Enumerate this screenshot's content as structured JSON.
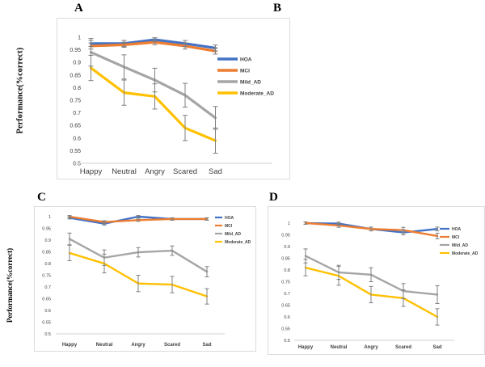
{
  "panels": {
    "a": {
      "letter": "A",
      "y_axis_label": "Performance(%correct)"
    },
    "b": {
      "letter": "B"
    },
    "c": {
      "letter": "C",
      "y_axis_label": "Performance(%correct)"
    },
    "d": {
      "letter": "D"
    }
  },
  "colors": {
    "hoa": "#4472C4",
    "mci": "#ED7D31",
    "mild_ad": "#A5A5A5",
    "moderate_ad": "#FFC000",
    "error_bar": "#7f7f7f",
    "axis_line": "#d9d9d9",
    "text": "#404040"
  },
  "chart_data": [
    {
      "type": "line",
      "panel": "A",
      "categories": [
        "Happy",
        "Neutral",
        "Angry",
        "Scared",
        "Sad"
      ],
      "ylabel": "Performance(%correct)",
      "ylim": [
        0.5,
        1
      ],
      "y_ticks": [
        "1",
        "0.95",
        "0.9",
        "0.85",
        "0.8",
        "0.75",
        "0.7",
        "0.65",
        "0.6",
        "0.55",
        "0.5"
      ],
      "legend_position": "right",
      "grid": false,
      "series": [
        {
          "name": "HOA",
          "color": "#4472C4",
          "values": [
            0.975,
            0.975,
            0.99,
            0.975,
            0.957
          ],
          "errors": [
            0.012,
            0.012,
            0.008,
            0.012,
            0.012
          ]
        },
        {
          "name": "MCI",
          "color": "#ED7D31",
          "values": [
            0.965,
            0.97,
            0.98,
            0.965,
            0.945
          ],
          "errors": [
            0.012,
            0.01,
            0.01,
            0.012,
            0.012
          ]
        },
        {
          "name": "Mild_AD",
          "color": "#A5A5A5",
          "values": [
            0.94,
            0.882,
            0.83,
            0.77,
            0.68
          ],
          "errors": [
            0.055,
            0.048,
            0.047,
            0.047,
            0.045
          ]
        },
        {
          "name": "Moderate_AD",
          "color": "#FFC000",
          "values": [
            0.878,
            0.78,
            0.765,
            0.64,
            0.59
          ],
          "errors": [
            0.05,
            0.05,
            0.05,
            0.05,
            0.05
          ]
        }
      ]
    },
    {
      "type": "line",
      "panel": "C",
      "categories": [
        "Happy",
        "Neutral",
        "Angry",
        "Scared",
        "Sad"
      ],
      "ylabel": "Performance(%correct)",
      "ylim": [
        0.5,
        1
      ],
      "y_ticks": [
        "1",
        "0.95",
        "0.9",
        "0.85",
        "0.8",
        "0.75",
        "0.7",
        "0.65",
        "0.6",
        "0.55",
        "0.5"
      ],
      "legend_position": "right",
      "grid": false,
      "series": [
        {
          "name": "HOA",
          "color": "#4472C4",
          "values": [
            0.995,
            0.97,
            1.0,
            0.99,
            0.99
          ],
          "errors": [
            0.005,
            0.006,
            0.005,
            0.005,
            0.005
          ]
        },
        {
          "name": "MCI",
          "color": "#ED7D31",
          "values": [
            1.0,
            0.977,
            0.985,
            0.99,
            0.99
          ],
          "errors": [
            0.005,
            0.006,
            0.005,
            0.005,
            0.005
          ]
        },
        {
          "name": "Mild_AD",
          "color": "#A5A5A5",
          "values": [
            0.905,
            0.825,
            0.848,
            0.855,
            0.765
          ],
          "errors": [
            0.025,
            0.033,
            0.02,
            0.02,
            0.022
          ]
        },
        {
          "name": "Moderate_AD",
          "color": "#FFC000",
          "values": [
            0.845,
            0.8,
            0.715,
            0.71,
            0.66
          ],
          "errors": [
            0.033,
            0.04,
            0.035,
            0.035,
            0.033
          ]
        }
      ]
    },
    {
      "type": "line",
      "panel": "D",
      "categories": [
        "Happy",
        "Neutral",
        "Angry",
        "Scared",
        "Sad"
      ],
      "ylabel": "",
      "ylim": [
        0.5,
        1
      ],
      "y_ticks": [
        "1",
        "0.95",
        "0.9",
        "0.85",
        "0.8",
        "0.75",
        "0.7",
        "0.65",
        "0.6",
        "0.55",
        "0.5"
      ],
      "legend_position": "right",
      "grid": false,
      "series": [
        {
          "name": "HOA",
          "color": "#4472C4",
          "values": [
            1.0,
            0.998,
            0.975,
            0.96,
            0.975
          ],
          "errors": [
            0.005,
            0.006,
            0.008,
            0.01,
            0.008
          ]
        },
        {
          "name": "MCI",
          "color": "#ED7D31",
          "values": [
            1.0,
            0.99,
            0.975,
            0.97,
            0.945
          ],
          "errors": [
            0.005,
            0.008,
            0.008,
            0.012,
            0.012
          ]
        },
        {
          "name": "Mild_AD",
          "color": "#A5A5A5",
          "values": [
            0.86,
            0.79,
            0.78,
            0.71,
            0.695
          ],
          "errors": [
            0.03,
            0.03,
            0.03,
            0.032,
            0.038
          ]
        },
        {
          "name": "Moderate_AD",
          "color": "#FFC000",
          "values": [
            0.81,
            0.775,
            0.695,
            0.68,
            0.6
          ],
          "errors": [
            0.035,
            0.04,
            0.035,
            0.035,
            0.035
          ]
        }
      ]
    }
  ]
}
